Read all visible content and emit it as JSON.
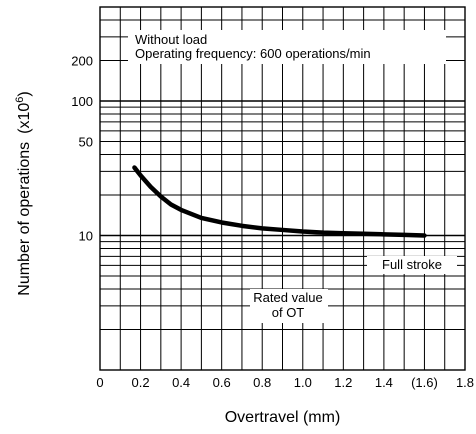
{
  "chart_data": {
    "type": "line",
    "title": "",
    "xlabel": "Overtravel (mm)",
    "ylabel": "Number of operations",
    "ylabel_unit_prefix": "(x10",
    "ylabel_unit_exponent": "6",
    "ylabel_unit_suffix": ")",
    "x_scale": "linear",
    "y_scale": "log",
    "xlim": [
      0,
      1.8
    ],
    "ylim": [
      1,
      500
    ],
    "grid": true,
    "x_ticks": [
      {
        "value": 0,
        "label": "0"
      },
      {
        "value": 0.2,
        "label": "0.2"
      },
      {
        "value": 0.4,
        "label": "0.4"
      },
      {
        "value": 0.6,
        "label": "0.6"
      },
      {
        "value": 0.8,
        "label": "0.8"
      },
      {
        "value": 1.0,
        "label": "1.0"
      },
      {
        "value": 1.2,
        "label": "1.2"
      },
      {
        "value": 1.4,
        "label": "1.4"
      },
      {
        "value": 1.6,
        "label": "(1.6)"
      },
      {
        "value": 1.8,
        "label": "1.8"
      }
    ],
    "y_ticks": [
      {
        "value": 10,
        "label": "10"
      },
      {
        "value": 50,
        "label": "50"
      },
      {
        "value": 100,
        "label": "100"
      },
      {
        "value": 200,
        "label": "200"
      }
    ],
    "series": [
      {
        "x": [
          0.17,
          0.2,
          0.25,
          0.3,
          0.35,
          0.4,
          0.5,
          0.6,
          0.7,
          0.8,
          0.9,
          1.0,
          1.1,
          1.2,
          1.3,
          1.4,
          1.5,
          1.6
        ],
        "y": [
          32,
          28,
          23,
          19.5,
          17,
          15.5,
          13.5,
          12.5,
          11.8,
          11.3,
          11.0,
          10.7,
          10.5,
          10.4,
          10.3,
          10.2,
          10.1,
          10.0
        ]
      }
    ],
    "annotations": [
      {
        "lines": [
          "Without load",
          "Operating frequency: 600 operations/min"
        ]
      },
      {
        "lines": [
          "Full stroke"
        ]
      },
      {
        "lines": [
          "Rated value",
          "of OT"
        ]
      }
    ]
  }
}
